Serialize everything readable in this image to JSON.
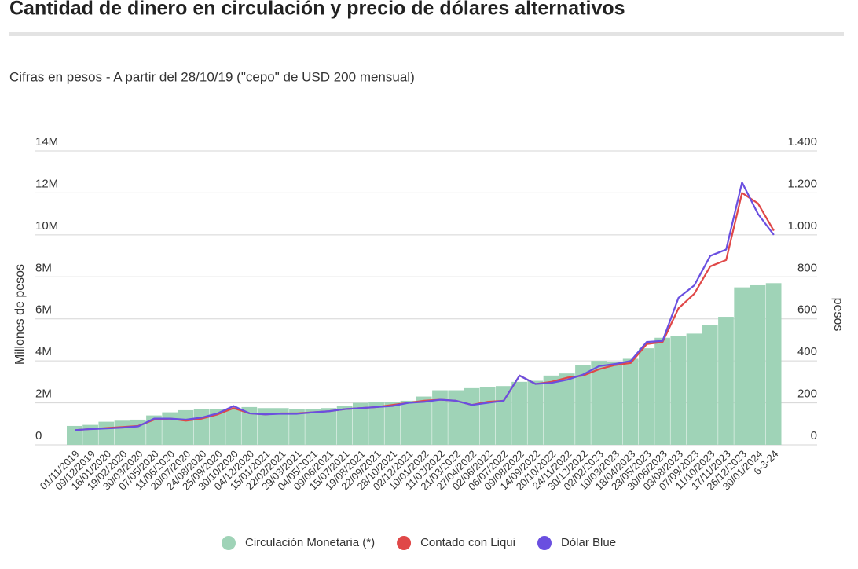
{
  "chart_data": {
    "type": "bar",
    "title": "Cantidad de dinero en circulación y precio de dólares alternativos",
    "subtitle": "Cifras en pesos - A partir del 28/10/19 (\"cepo\" de USD 200 mensual)",
    "y_label": "Millones de pesos",
    "y2_label": "pesos",
    "categories": [
      "01/11/2019",
      "09/12/2019",
      "16/01/2020",
      "19/02/2020",
      "30/03/2020",
      "07/05/2020",
      "11/06/2020",
      "20/07/2020",
      "24/08/2020",
      "25/09/2020",
      "30/10/2020",
      "04/12/2020",
      "15/01/2021",
      "22/02/2021",
      "29/03/2021",
      "04/05/2021",
      "09/06/2021",
      "15/07/2021",
      "19/08/2021",
      "22/09/2021",
      "28/10/2021",
      "02/12/2021",
      "10/01/2022",
      "11/02/2022",
      "21/03/2022",
      "27/04/2022",
      "02/06/2022",
      "06/07/2022",
      "09/08/2022",
      "14/09/2022",
      "20/10/2022",
      "24/11/2022",
      "30/12/2022",
      "02/02/2023",
      "10/03/2023",
      "18/04/2023",
      "23/05/2023",
      "30/06/2023",
      "03/08/2023",
      "07/09/2023",
      "11/10/2023",
      "17/11/2023",
      "26/12/2023",
      "30/01/2024",
      "6-3-24"
    ],
    "series": [
      {
        "name": "Circulación Monetaria (*)",
        "type": "bar",
        "color": "#9fd3b7",
        "values": [
          0.9,
          0.95,
          1.1,
          1.15,
          1.2,
          1.4,
          1.55,
          1.65,
          1.7,
          1.7,
          1.7,
          1.8,
          1.75,
          1.75,
          1.7,
          1.7,
          1.75,
          1.85,
          2.0,
          2.05,
          2.05,
          2.1,
          2.3,
          2.6,
          2.6,
          2.7,
          2.75,
          2.8,
          3.0,
          3.05,
          3.3,
          3.4,
          3.8,
          4.0,
          3.95,
          4.1,
          4.6,
          5.1,
          5.2,
          5.3,
          5.7,
          6.1,
          7.5,
          7.6,
          7.7
        ]
      },
      {
        "name": "Contado con Liqui",
        "type": "line",
        "axis": "y2",
        "color": "#e04848",
        "values": [
          70,
          75,
          80,
          85,
          90,
          120,
          125,
          115,
          125,
          145,
          175,
          150,
          145,
          150,
          150,
          155,
          160,
          170,
          175,
          180,
          190,
          200,
          210,
          215,
          210,
          190,
          205,
          210,
          330,
          290,
          300,
          320,
          330,
          360,
          380,
          390,
          480,
          490,
          650,
          720,
          850,
          880,
          1200,
          1150,
          1020
        ]
      },
      {
        "name": "Dólar Blue",
        "type": "line",
        "axis": "y2",
        "color": "#6a4fe0",
        "values": [
          70,
          75,
          78,
          82,
          88,
          125,
          125,
          120,
          130,
          150,
          185,
          150,
          145,
          148,
          148,
          155,
          160,
          170,
          175,
          180,
          185,
          200,
          205,
          215,
          210,
          190,
          200,
          210,
          330,
          290,
          295,
          310,
          335,
          375,
          385,
          400,
          490,
          495,
          700,
          760,
          900,
          930,
          1250,
          1100,
          1000
        ]
      }
    ],
    "ylim": [
      0,
      14
    ],
    "yticks": [
      0,
      {
        "value": 2,
        "label": "2M"
      },
      {
        "value": 4,
        "label": "4M"
      },
      {
        "value": 6,
        "label": "6M"
      },
      {
        "value": 8,
        "label": "8M"
      },
      {
        "value": 10,
        "label": "10M"
      },
      {
        "value": 12,
        "label": "12M"
      },
      {
        "value": 14,
        "label": "14M"
      }
    ],
    "y2lim": [
      0,
      1400
    ],
    "y2ticks": [
      0,
      200,
      400,
      600,
      800,
      {
        "value": 1000,
        "label": "1.000"
      },
      {
        "value": 1200,
        "label": "1.200"
      },
      {
        "value": 1400,
        "label": "1.400"
      }
    ],
    "grid": true,
    "legend": "bottom"
  }
}
